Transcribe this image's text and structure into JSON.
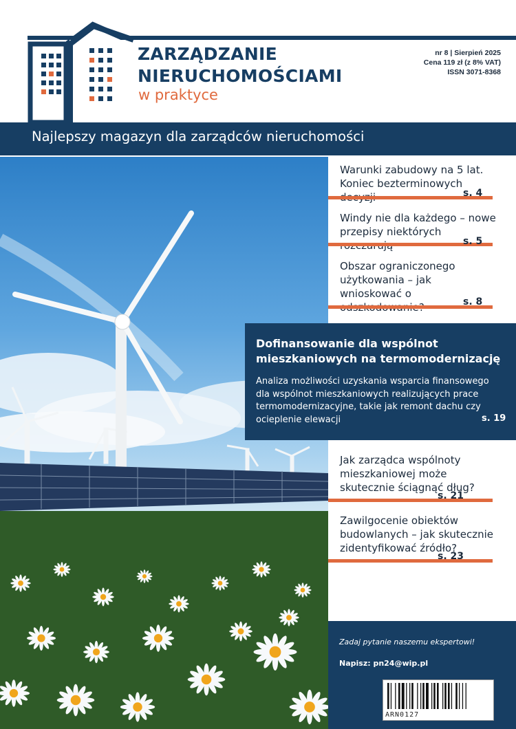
{
  "masthead": {
    "title_line1": "ZARZĄDZANIE",
    "title_line2": "NIERUCHOMOŚCIAMI",
    "subtitle": "w praktyce",
    "issue": "nr 8 | Sierpień 2025",
    "price": "Cena 119 zł (z 8% VAT)",
    "issn": "ISSN 3071-8368",
    "logo_icon": "building-icon"
  },
  "tagline": "Najlepszy magazyn dla zarządców nieruchomości",
  "articles": [
    {
      "title": "Warunki zabudowy na 5 lat. Koniec bezterminowych decyzji",
      "page": "s. 4"
    },
    {
      "title": "Windy nie dla każdego – nowe przepisy niektórych rozczarują",
      "page": "s. 5"
    },
    {
      "title": "Obszar ograniczonego użytkowania – jak wnioskować o odszkodowanie?",
      "page": "s. 8"
    },
    {
      "title": "Jak zarządca wspólnoty mieszkaniowej może skutecznie ściągnąć dług?",
      "page": "s. 21"
    },
    {
      "title": "Zawilgocenie obiektów budowlanych – jak skutecznie zidentyfikować źródło?",
      "page": "s. 23"
    }
  ],
  "feature": {
    "title": "Dofinansowanie dla wspólnot mieszkaniowych na termomodernizację",
    "body": "Analiza możliwości uzyskania wsparcia finansowego dla wspólnot mieszkaniowych realizujących prace termomodernizacyjne, takie jak remont dachu czy ocieplenie elewacji",
    "page": "s. 19"
  },
  "ask": {
    "line": "Zadaj pytanie naszemu ekspertowi!",
    "write": "Napisz: pn24@wip.pl"
  },
  "barcode_text": "ARN0127",
  "colors": {
    "navy": "#173e63",
    "accent": "#e06a3e"
  }
}
